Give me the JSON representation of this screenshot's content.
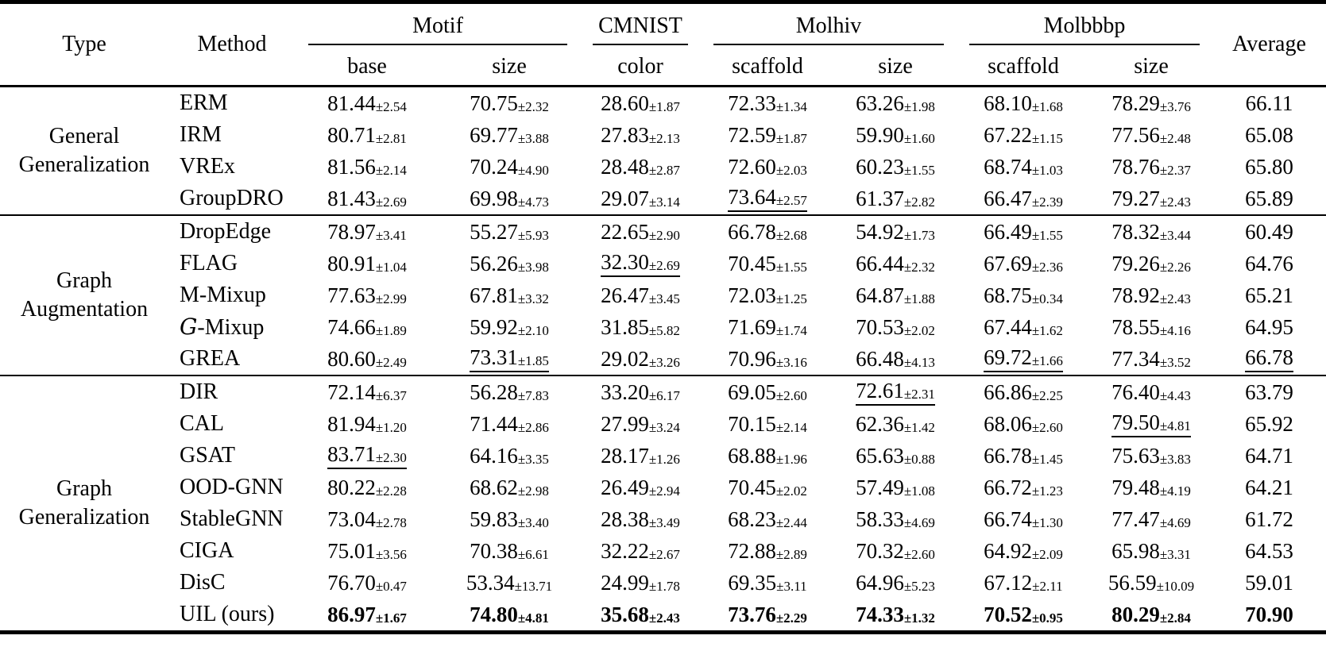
{
  "table": {
    "header": {
      "type": "Type",
      "method": "Method",
      "groups": [
        {
          "label": "Motif",
          "subs": [
            "base",
            "size"
          ]
        },
        {
          "label": "CMNIST",
          "subs": [
            "color"
          ]
        },
        {
          "label": "Molhiv",
          "subs": [
            "scaffold",
            "size"
          ]
        },
        {
          "label": "Molbbbp",
          "subs": [
            "scaffold",
            "size"
          ]
        }
      ],
      "average": "Average"
    },
    "groups": [
      {
        "type": "General Generalization",
        "rows": [
          {
            "method": "ERM",
            "cells": [
              {
                "v": "81.44",
                "pm": "2.54"
              },
              {
                "v": "70.75",
                "pm": "2.32"
              },
              {
                "v": "28.60",
                "pm": "1.87"
              },
              {
                "v": "72.33",
                "pm": "1.34"
              },
              {
                "v": "63.26",
                "pm": "1.98"
              },
              {
                "v": "68.10",
                "pm": "1.68"
              },
              {
                "v": "78.29",
                "pm": "3.76"
              }
            ],
            "avg": {
              "v": "66.11"
            }
          },
          {
            "method": "IRM",
            "cells": [
              {
                "v": "80.71",
                "pm": "2.81"
              },
              {
                "v": "69.77",
                "pm": "3.88"
              },
              {
                "v": "27.83",
                "pm": "2.13"
              },
              {
                "v": "72.59",
                "pm": "1.87"
              },
              {
                "v": "59.90",
                "pm": "1.60"
              },
              {
                "v": "67.22",
                "pm": "1.15"
              },
              {
                "v": "77.56",
                "pm": "2.48"
              }
            ],
            "avg": {
              "v": "65.08"
            }
          },
          {
            "method": "VREx",
            "cells": [
              {
                "v": "81.56",
                "pm": "2.14"
              },
              {
                "v": "70.24",
                "pm": "4.90"
              },
              {
                "v": "28.48",
                "pm": "2.87"
              },
              {
                "v": "72.60",
                "pm": "2.03"
              },
              {
                "v": "60.23",
                "pm": "1.55"
              },
              {
                "v": "68.74",
                "pm": "1.03"
              },
              {
                "v": "78.76",
                "pm": "2.37"
              }
            ],
            "avg": {
              "v": "65.80"
            }
          },
          {
            "method": "GroupDRO",
            "cells": [
              {
                "v": "81.43",
                "pm": "2.69"
              },
              {
                "v": "69.98",
                "pm": "4.73"
              },
              {
                "v": "29.07",
                "pm": "3.14"
              },
              {
                "v": "73.64",
                "pm": "2.57",
                "u": true
              },
              {
                "v": "61.37",
                "pm": "2.82"
              },
              {
                "v": "66.47",
                "pm": "2.39"
              },
              {
                "v": "79.27",
                "pm": "2.43"
              }
            ],
            "avg": {
              "v": "65.89"
            }
          }
        ]
      },
      {
        "type": "Graph Augmentation",
        "rows": [
          {
            "method": "DropEdge",
            "cells": [
              {
                "v": "78.97",
                "pm": "3.41"
              },
              {
                "v": "55.27",
                "pm": "5.93"
              },
              {
                "v": "22.65",
                "pm": "2.90"
              },
              {
                "v": "66.78",
                "pm": "2.68"
              },
              {
                "v": "54.92",
                "pm": "1.73"
              },
              {
                "v": "66.49",
                "pm": "1.55"
              },
              {
                "v": "78.32",
                "pm": "3.44"
              }
            ],
            "avg": {
              "v": "60.49"
            }
          },
          {
            "method": "FLAG",
            "cells": [
              {
                "v": "80.91",
                "pm": "1.04"
              },
              {
                "v": "56.26",
                "pm": "3.98"
              },
              {
                "v": "32.30",
                "pm": "2.69",
                "u": true
              },
              {
                "v": "70.45",
                "pm": "1.55"
              },
              {
                "v": "66.44",
                "pm": "2.32"
              },
              {
                "v": "67.69",
                "pm": "2.36"
              },
              {
                "v": "79.26",
                "pm": "2.26"
              }
            ],
            "avg": {
              "v": "64.76"
            }
          },
          {
            "method": "M-Mixup",
            "cells": [
              {
                "v": "77.63",
                "pm": "2.99"
              },
              {
                "v": "67.81",
                "pm": "3.32"
              },
              {
                "v": "26.47",
                "pm": "3.45"
              },
              {
                "v": "72.03",
                "pm": "1.25"
              },
              {
                "v": "64.87",
                "pm": "1.88"
              },
              {
                "v": "68.75",
                "pm": "0.34"
              },
              {
                "v": "78.92",
                "pm": "2.43"
              }
            ],
            "avg": {
              "v": "65.21"
            }
          },
          {
            "method": "𝒢-Mixup",
            "cells": [
              {
                "v": "74.66",
                "pm": "1.89"
              },
              {
                "v": "59.92",
                "pm": "2.10"
              },
              {
                "v": "31.85",
                "pm": "5.82"
              },
              {
                "v": "71.69",
                "pm": "1.74"
              },
              {
                "v": "70.53",
                "pm": "2.02"
              },
              {
                "v": "67.44",
                "pm": "1.62"
              },
              {
                "v": "78.55",
                "pm": "4.16"
              }
            ],
            "avg": {
              "v": "64.95"
            }
          },
          {
            "method": "GREA",
            "cells": [
              {
                "v": "80.60",
                "pm": "2.49"
              },
              {
                "v": "73.31",
                "pm": "1.85",
                "u": true
              },
              {
                "v": "29.02",
                "pm": "3.26"
              },
              {
                "v": "70.96",
                "pm": "3.16"
              },
              {
                "v": "66.48",
                "pm": "4.13"
              },
              {
                "v": "69.72",
                "pm": "1.66",
                "u": true
              },
              {
                "v": "77.34",
                "pm": "3.52"
              }
            ],
            "avg": {
              "v": "66.78",
              "u": true
            }
          }
        ]
      },
      {
        "type": "Graph Generalization",
        "rows": [
          {
            "method": "DIR",
            "cells": [
              {
                "v": "72.14",
                "pm": "6.37"
              },
              {
                "v": "56.28",
                "pm": "7.83"
              },
              {
                "v": "33.20",
                "pm": "6.17"
              },
              {
                "v": "69.05",
                "pm": "2.60"
              },
              {
                "v": "72.61",
                "pm": "2.31",
                "u": true
              },
              {
                "v": "66.86",
                "pm": "2.25"
              },
              {
                "v": "76.40",
                "pm": "4.43"
              }
            ],
            "avg": {
              "v": "63.79"
            }
          },
          {
            "method": "CAL",
            "cells": [
              {
                "v": "81.94",
                "pm": "1.20"
              },
              {
                "v": "71.44",
                "pm": "2.86"
              },
              {
                "v": "27.99",
                "pm": "3.24"
              },
              {
                "v": "70.15",
                "pm": "2.14"
              },
              {
                "v": "62.36",
                "pm": "1.42"
              },
              {
                "v": "68.06",
                "pm": "2.60"
              },
              {
                "v": "79.50",
                "pm": "4.81",
                "u": true
              }
            ],
            "avg": {
              "v": "65.92"
            }
          },
          {
            "method": "GSAT",
            "cells": [
              {
                "v": "83.71",
                "pm": "2.30",
                "u": true
              },
              {
                "v": "64.16",
                "pm": "3.35"
              },
              {
                "v": "28.17",
                "pm": "1.26"
              },
              {
                "v": "68.88",
                "pm": "1.96"
              },
              {
                "v": "65.63",
                "pm": "0.88"
              },
              {
                "v": "66.78",
                "pm": "1.45"
              },
              {
                "v": "75.63",
                "pm": "3.83"
              }
            ],
            "avg": {
              "v": "64.71"
            }
          },
          {
            "method": "OOD-GNN",
            "cells": [
              {
                "v": "80.22",
                "pm": "2.28"
              },
              {
                "v": "68.62",
                "pm": "2.98"
              },
              {
                "v": "26.49",
                "pm": "2.94"
              },
              {
                "v": "70.45",
                "pm": "2.02"
              },
              {
                "v": "57.49",
                "pm": "1.08"
              },
              {
                "v": "66.72",
                "pm": "1.23"
              },
              {
                "v": "79.48",
                "pm": "4.19"
              }
            ],
            "avg": {
              "v": "64.21"
            }
          },
          {
            "method": "StableGNN",
            "cells": [
              {
                "v": "73.04",
                "pm": "2.78"
              },
              {
                "v": "59.83",
                "pm": "3.40"
              },
              {
                "v": "28.38",
                "pm": "3.49"
              },
              {
                "v": "68.23",
                "pm": "2.44"
              },
              {
                "v": "58.33",
                "pm": "4.69"
              },
              {
                "v": "66.74",
                "pm": "1.30"
              },
              {
                "v": "77.47",
                "pm": "4.69"
              }
            ],
            "avg": {
              "v": "61.72"
            }
          },
          {
            "method": "CIGA",
            "cells": [
              {
                "v": "75.01",
                "pm": "3.56"
              },
              {
                "v": "70.38",
                "pm": "6.61"
              },
              {
                "v": "32.22",
                "pm": "2.67"
              },
              {
                "v": "72.88",
                "pm": "2.89"
              },
              {
                "v": "70.32",
                "pm": "2.60"
              },
              {
                "v": "64.92",
                "pm": "2.09"
              },
              {
                "v": "65.98",
                "pm": "3.31"
              }
            ],
            "avg": {
              "v": "64.53"
            }
          },
          {
            "method": "DisC",
            "cells": [
              {
                "v": "76.70",
                "pm": "0.47"
              },
              {
                "v": "53.34",
                "pm": "13.71"
              },
              {
                "v": "24.99",
                "pm": "1.78"
              },
              {
                "v": "69.35",
                "pm": "3.11"
              },
              {
                "v": "64.96",
                "pm": "5.23"
              },
              {
                "v": "67.12",
                "pm": "2.11"
              },
              {
                "v": "56.59",
                "pm": "10.09"
              }
            ],
            "avg": {
              "v": "59.01"
            }
          },
          {
            "method": "UIL (ours)",
            "cells": [
              {
                "v": "86.97",
                "pm": "1.67",
                "b": true
              },
              {
                "v": "74.80",
                "pm": "4.81",
                "b": true
              },
              {
                "v": "35.68",
                "pm": "2.43",
                "b": true
              },
              {
                "v": "73.76",
                "pm": "2.29",
                "b": true
              },
              {
                "v": "74.33",
                "pm": "1.32",
                "b": true
              },
              {
                "v": "70.52",
                "pm": "0.95",
                "b": true
              },
              {
                "v": "80.29",
                "pm": "2.84",
                "b": true
              }
            ],
            "avg": {
              "v": "70.90",
              "b": true
            }
          }
        ]
      }
    ]
  }
}
